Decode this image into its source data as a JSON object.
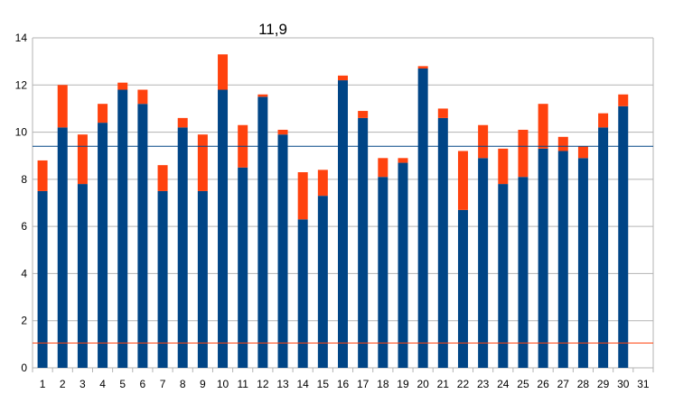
{
  "chart_data": {
    "type": "bar",
    "stacked": true,
    "title": "11,9",
    "xlabel": "",
    "ylabel": "",
    "ylim": [
      0,
      14
    ],
    "yticks": [
      0,
      2,
      4,
      6,
      8,
      10,
      12,
      14
    ],
    "grid": true,
    "legend": "none",
    "categories": [
      "1",
      "2",
      "3",
      "4",
      "5",
      "6",
      "7",
      "8",
      "9",
      "10",
      "11",
      "12",
      "13",
      "14",
      "15",
      "16",
      "17",
      "18",
      "19",
      "20",
      "21",
      "22",
      "23",
      "24",
      "25",
      "26",
      "27",
      "28",
      "29",
      "30",
      "31"
    ],
    "series": [
      {
        "color": "#004586",
        "values": [
          7.5,
          10.2,
          7.8,
          10.4,
          11.8,
          11.2,
          7.5,
          10.2,
          7.5,
          11.8,
          8.5,
          11.5,
          9.9,
          6.3,
          7.3,
          12.2,
          10.6,
          8.1,
          8.7,
          12.7,
          10.6,
          6.7,
          8.9,
          7.8,
          8.1,
          9.3,
          9.2,
          8.9,
          10.2,
          11.1,
          null
        ]
      },
      {
        "color": "#ff420e",
        "values": [
          1.3,
          1.8,
          2.1,
          0.8,
          0.3,
          0.6,
          1.1,
          0.4,
          2.4,
          1.5,
          1.8,
          0.1,
          0.2,
          2.0,
          1.1,
          0.2,
          0.3,
          0.8,
          0.2,
          0.1,
          0.4,
          2.5,
          1.4,
          1.5,
          2.0,
          1.9,
          0.6,
          0.5,
          0.6,
          0.5,
          null
        ]
      }
    ],
    "reference_lines": [
      {
        "value": 9.4,
        "color": "#004586"
      },
      {
        "value": 1.05,
        "color": "#ff420e"
      }
    ],
    "colors": {
      "grid": "#b3b3b3",
      "axis": "#b3b3b3"
    }
  }
}
